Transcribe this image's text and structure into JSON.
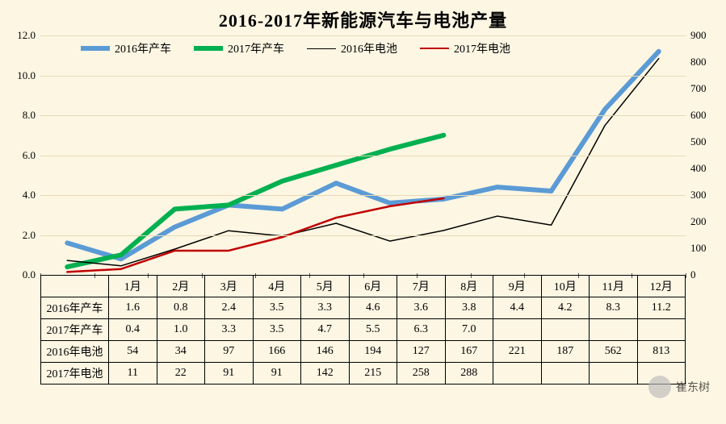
{
  "title": "2016-2017年新能源汽车与电池产量",
  "background_color": "#fdf6e3",
  "grid_color": "#e5d9b6",
  "axis_text_color": "#000000",
  "categories": [
    "1月",
    "2月",
    "3月",
    "4月",
    "5月",
    "6月",
    "7月",
    "8月",
    "9月",
    "10月",
    "11月",
    "12月"
  ],
  "left_axis": {
    "min": 0.0,
    "max": 12.0,
    "step": 2.0,
    "format": "fixed1"
  },
  "right_axis": {
    "min": 0,
    "max": 900,
    "step": 100,
    "format": "int"
  },
  "series": [
    {
      "key": "car2016",
      "label": "2016年产车",
      "axis": "left",
      "color": "#5b9bd5",
      "width": 6,
      "data": [
        1.6,
        0.8,
        2.4,
        3.5,
        3.3,
        4.6,
        3.6,
        3.8,
        4.4,
        4.2,
        8.3,
        11.2
      ]
    },
    {
      "key": "car2017",
      "label": "2017年产车",
      "axis": "left",
      "color": "#00b050",
      "width": 6,
      "data": [
        0.4,
        1.0,
        3.3,
        3.5,
        4.7,
        5.5,
        6.3,
        7.0,
        null,
        null,
        null,
        null
      ]
    },
    {
      "key": "bat2016",
      "label": "2016年电池",
      "axis": "right",
      "color": "#000000",
      "width": 1.5,
      "data": [
        54,
        34,
        97,
        166,
        146,
        194,
        127,
        167,
        221,
        187,
        562,
        813
      ]
    },
    {
      "key": "bat2017",
      "label": "2017年电池",
      "axis": "right",
      "color": "#c00000",
      "width": 2.5,
      "data": [
        11,
        22,
        91,
        91,
        142,
        215,
        258,
        288,
        null,
        null,
        null,
        null
      ]
    }
  ],
  "table_rows": [
    {
      "head": "2016年产车",
      "cells": [
        "1.6",
        "0.8",
        "2.4",
        "3.5",
        "3.3",
        "4.6",
        "3.6",
        "3.8",
        "4.4",
        "4.2",
        "8.3",
        "11.2"
      ]
    },
    {
      "head": "2017年产车",
      "cells": [
        "0.4",
        "1.0",
        "3.3",
        "3.5",
        "4.7",
        "5.5",
        "6.3",
        "7.0",
        "",
        "",
        "",
        ""
      ]
    },
    {
      "head": "2016年电池",
      "cells": [
        "54",
        "34",
        "97",
        "166",
        "146",
        "194",
        "127",
        "167",
        "221",
        "187",
        "562",
        "813"
      ]
    },
    {
      "head": "2017年电池",
      "cells": [
        "11",
        "22",
        "91",
        "91",
        "142",
        "215",
        "258",
        "288",
        "",
        "",
        "",
        ""
      ]
    }
  ],
  "watermark": {
    "text": "崔东树"
  }
}
